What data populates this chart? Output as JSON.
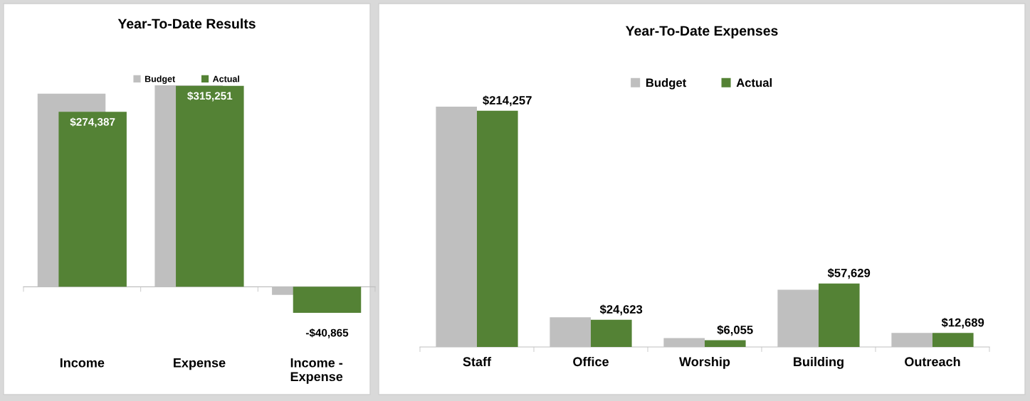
{
  "chart_data": [
    {
      "type": "bar",
      "title": "Year-To-Date Results",
      "categories": [
        "Income",
        "Expense",
        "Income -\nExpense"
      ],
      "legend": "top",
      "series": [
        {
          "name": "Budget",
          "color": "#bfbfbf",
          "values": [
            303000,
            316000,
            -12600
          ]
        },
        {
          "name": "Actual",
          "color": "#548235",
          "values": [
            274387,
            315251,
            -40865
          ],
          "value_labels": [
            "$274,387",
            "$315,251",
            "-$40,865"
          ]
        }
      ]
    },
    {
      "type": "bar",
      "title": "Year-To-Date Expenses",
      "categories": [
        "Staff",
        "Office",
        "Worship",
        "Building",
        "Outreach"
      ],
      "legend": "top",
      "series": [
        {
          "name": "Budget",
          "color": "#bfbfbf",
          "values": [
            218000,
            27000,
            8000,
            52000,
            12700
          ]
        },
        {
          "name": "Actual",
          "color": "#548235",
          "values": [
            214257,
            24623,
            6055,
            57629,
            12689
          ],
          "value_labels": [
            "$214,257",
            "$24,623",
            "$6,055",
            "$57,629",
            "$12,689"
          ]
        }
      ]
    }
  ]
}
